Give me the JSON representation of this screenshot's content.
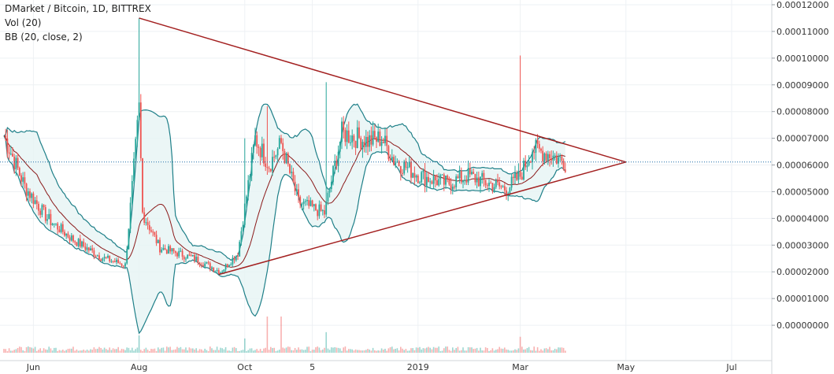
{
  "chart_title": "DMarket / Bitcoin, 1D, BITTREX",
  "indicators": [
    "Vol (20)",
    "BB (20, close, 2)"
  ],
  "colors": {
    "up": "#26a69a",
    "down": "#ef5350",
    "bb_band": "#1e7f88",
    "bb_fill": "#e6f4f4",
    "bb_basis": "#8b1a1a",
    "trendline": "#a32020",
    "last_price_line": "#1f6fa8",
    "grid": "#eef1f4"
  },
  "chart_data": {
    "type": "candlestick",
    "title": "DMarket / Bitcoin, 1D, BITTREX",
    "ylim": [
      -1e-05,
      0.00012
    ],
    "y_ticks": [
      "0.00012000",
      "0.00011000",
      "0.00010000",
      "0.00009000",
      "0.00008000",
      "0.00007000",
      "0.00006000",
      "0.00005000",
      "0.00004000",
      "0.00003000",
      "0.00002000",
      "0.00001000",
      "0.00000000"
    ],
    "y_tick_values": [
      0.00012,
      0.00011,
      0.0001,
      9e-05,
      8e-05,
      7e-05,
      6e-05,
      5e-05,
      4e-05,
      3e-05,
      2e-05,
      1e-05,
      0
    ],
    "x_ticks": [
      "Jun",
      "Aug",
      "Oct",
      "5",
      "2019",
      "Mar",
      "May",
      "Jul"
    ],
    "x_tick_days": [
      17,
      78,
      139,
      178,
      239,
      298,
      359,
      420
    ],
    "last_price": 6.11e-05,
    "approx_close": {
      "day": [
        0,
        12,
        25,
        40,
        56,
        70,
        78,
        80,
        90,
        110,
        125,
        135,
        145,
        153,
        160,
        170,
        185,
        195,
        210,
        218,
        225,
        240,
        256,
        268,
        280,
        290,
        298,
        305,
        315,
        324
      ],
      "value": [
        7.1e-05,
        5.2e-05,
        4e-05,
        3.2e-05,
        2.55e-05,
        2.25e-05,
        8.1e-05,
        4.2e-05,
        2.9e-05,
        2.5e-05,
        2e-05,
        2.7e-05,
        7e-05,
        6e-05,
        6.8e-05,
        4.6e-05,
        4.2e-05,
        7.2e-05,
        6.9e-05,
        7e-05,
        6.2e-05,
        5.6e-05,
        5.3e-05,
        5.6e-05,
        5.3e-05,
        5.1e-05,
        5.6e-05,
        6.6e-05,
        6.4e-05,
        6.1e-05
      ]
    },
    "triangle": {
      "upper": {
        "from_day": 78,
        "from_value": 0.000115,
        "to_day": 359,
        "to_value": 6.11e-05
      },
      "lower": {
        "from_day": 124,
        "from_value": 1.9e-05,
        "to_day": 359,
        "to_value": 6.11e-05
      }
    }
  }
}
